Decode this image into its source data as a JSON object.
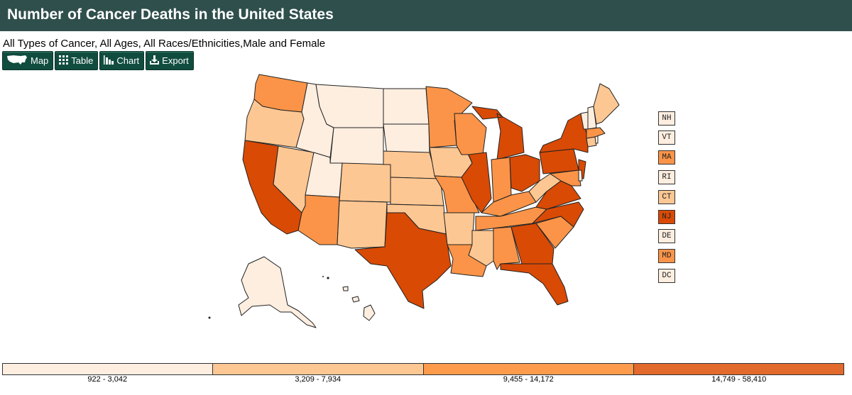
{
  "header": {
    "title": "Number of Cancer Deaths in the United States"
  },
  "subtitle": "All Types of Cancer, All Ages, All Races/Ethnicities,Male and Female",
  "toolbar": {
    "buttons": [
      {
        "label": "Map",
        "icon": "us-map-icon"
      },
      {
        "label": "Table",
        "icon": "grid-icon"
      },
      {
        "label": "Chart",
        "icon": "bar-chart-icon"
      },
      {
        "label": "Export",
        "icon": "download-icon"
      }
    ]
  },
  "legend": {
    "classes": [
      {
        "label": "922 - 3,042",
        "color": "#fdeee0"
      },
      {
        "label": "3,209 - 7,934",
        "color": "#fdc793"
      },
      {
        "label": "9,455 - 14,172",
        "color": "#fd9b4c"
      },
      {
        "label": "14,749 - 58,410",
        "color": "#e26a2c"
      }
    ]
  },
  "map_colors": {
    "c1": "#fdeee0",
    "c2": "#fdc793",
    "c3": "#fb9448",
    "c4": "#d94a05"
  },
  "small_states": [
    {
      "abbr": "NH",
      "class": 1
    },
    {
      "abbr": "VT",
      "class": 1
    },
    {
      "abbr": "MA",
      "class": 3
    },
    {
      "abbr": "RI",
      "class": 1
    },
    {
      "abbr": "CT",
      "class": 2
    },
    {
      "abbr": "NJ",
      "class": 4
    },
    {
      "abbr": "DE",
      "class": 1
    },
    {
      "abbr": "MD",
      "class": 3
    },
    {
      "abbr": "DC",
      "class": 1
    }
  ]
}
